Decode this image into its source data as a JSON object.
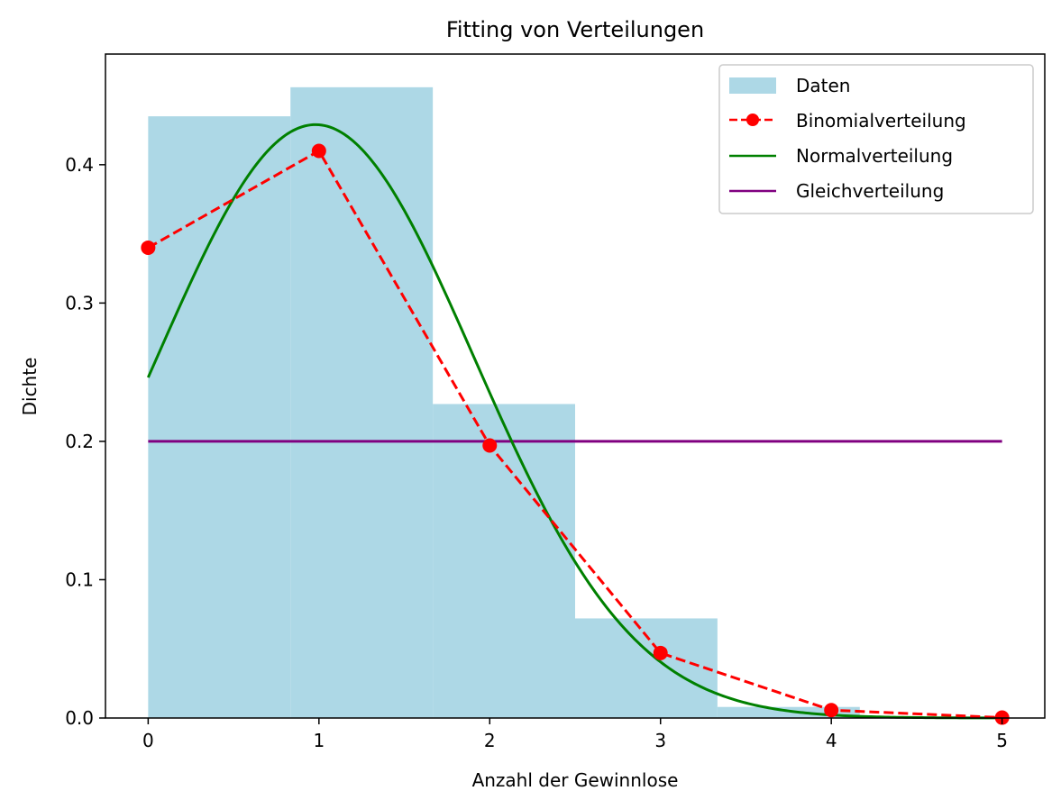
{
  "chart_data": {
    "type": "bar",
    "title": "Fitting von Verteilungen",
    "xlabel": "Anzahl der Gewinnlose",
    "ylabel": "Dichte",
    "xlim": [
      -0.25,
      5.25
    ],
    "ylim": [
      0,
      0.48
    ],
    "x_ticks": [
      "0",
      "1",
      "2",
      "3",
      "4",
      "5"
    ],
    "y_ticks": [
      "0.0",
      "0.1",
      "0.2",
      "0.3",
      "0.4"
    ],
    "grid": false,
    "legend_position": "top-right",
    "colors": {
      "histogram": "#add8e6",
      "binomial": "#ff0000",
      "normal": "#008000",
      "uniform": "#800080"
    },
    "histogram": {
      "name": "Daten",
      "bin_edges": [
        0,
        0.8333,
        1.6667,
        2.5,
        3.3333,
        4.1667,
        5.0
      ],
      "values": [
        0.435,
        0.456,
        0.227,
        0.072,
        0.008,
        0.0
      ]
    },
    "binomial": {
      "name": "Binomialverteilung",
      "x": [
        0,
        1,
        2,
        3,
        4,
        5
      ],
      "y": [
        0.34,
        0.41,
        0.197,
        0.047,
        0.0057,
        0.0003
      ]
    },
    "normal": {
      "name": "Normalverteilung",
      "mean": 0.98,
      "std": 0.93,
      "x_range": [
        0,
        5
      ]
    },
    "uniform": {
      "name": "Gleichverteilung",
      "x": [
        0,
        5
      ],
      "y": [
        0.2,
        0.2
      ]
    }
  }
}
